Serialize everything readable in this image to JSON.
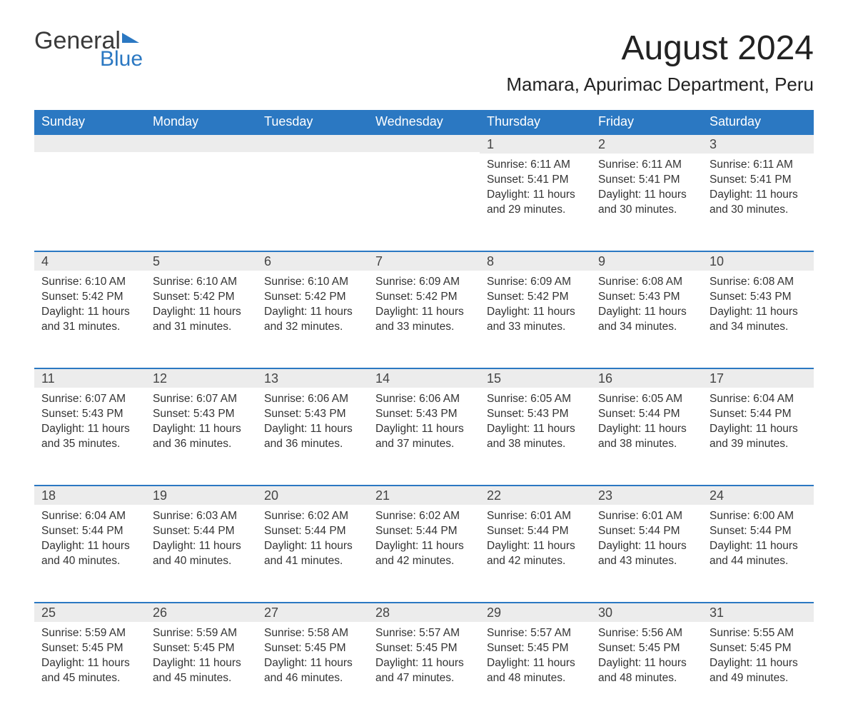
{
  "brand": {
    "top": "General",
    "bottom": "Blue"
  },
  "title": "August 2024",
  "location": "Mamara, Apurimac Department, Peru",
  "weekdays": [
    "Sunday",
    "Monday",
    "Tuesday",
    "Wednesday",
    "Thursday",
    "Friday",
    "Saturday"
  ],
  "style": {
    "accent_color": "#2b78c2",
    "header_bg": "#2b78c2",
    "header_text": "#ffffff",
    "daynum_bg": "#ececec",
    "daynum_border": "#2b78c2",
    "body_text": "#333333",
    "page_bg": "#ffffff",
    "month_fontsize": 48,
    "location_fontsize": 26,
    "header_fontsize": 18,
    "daynum_fontsize": 18,
    "cell_fontsize": 15.5
  },
  "calendar": {
    "type": "table",
    "columns": 7,
    "rows": 5,
    "first_weekday_index": 4,
    "days": [
      {
        "n": 1,
        "sunrise": "6:11 AM",
        "sunset": "5:41 PM",
        "daylight": "11 hours and 29 minutes."
      },
      {
        "n": 2,
        "sunrise": "6:11 AM",
        "sunset": "5:41 PM",
        "daylight": "11 hours and 30 minutes."
      },
      {
        "n": 3,
        "sunrise": "6:11 AM",
        "sunset": "5:41 PM",
        "daylight": "11 hours and 30 minutes."
      },
      {
        "n": 4,
        "sunrise": "6:10 AM",
        "sunset": "5:42 PM",
        "daylight": "11 hours and 31 minutes."
      },
      {
        "n": 5,
        "sunrise": "6:10 AM",
        "sunset": "5:42 PM",
        "daylight": "11 hours and 31 minutes."
      },
      {
        "n": 6,
        "sunrise": "6:10 AM",
        "sunset": "5:42 PM",
        "daylight": "11 hours and 32 minutes."
      },
      {
        "n": 7,
        "sunrise": "6:09 AM",
        "sunset": "5:42 PM",
        "daylight": "11 hours and 33 minutes."
      },
      {
        "n": 8,
        "sunrise": "6:09 AM",
        "sunset": "5:42 PM",
        "daylight": "11 hours and 33 minutes."
      },
      {
        "n": 9,
        "sunrise": "6:08 AM",
        "sunset": "5:43 PM",
        "daylight": "11 hours and 34 minutes."
      },
      {
        "n": 10,
        "sunrise": "6:08 AM",
        "sunset": "5:43 PM",
        "daylight": "11 hours and 34 minutes."
      },
      {
        "n": 11,
        "sunrise": "6:07 AM",
        "sunset": "5:43 PM",
        "daylight": "11 hours and 35 minutes."
      },
      {
        "n": 12,
        "sunrise": "6:07 AM",
        "sunset": "5:43 PM",
        "daylight": "11 hours and 36 minutes."
      },
      {
        "n": 13,
        "sunrise": "6:06 AM",
        "sunset": "5:43 PM",
        "daylight": "11 hours and 36 minutes."
      },
      {
        "n": 14,
        "sunrise": "6:06 AM",
        "sunset": "5:43 PM",
        "daylight": "11 hours and 37 minutes."
      },
      {
        "n": 15,
        "sunrise": "6:05 AM",
        "sunset": "5:43 PM",
        "daylight": "11 hours and 38 minutes."
      },
      {
        "n": 16,
        "sunrise": "6:05 AM",
        "sunset": "5:44 PM",
        "daylight": "11 hours and 38 minutes."
      },
      {
        "n": 17,
        "sunrise": "6:04 AM",
        "sunset": "5:44 PM",
        "daylight": "11 hours and 39 minutes."
      },
      {
        "n": 18,
        "sunrise": "6:04 AM",
        "sunset": "5:44 PM",
        "daylight": "11 hours and 40 minutes."
      },
      {
        "n": 19,
        "sunrise": "6:03 AM",
        "sunset": "5:44 PM",
        "daylight": "11 hours and 40 minutes."
      },
      {
        "n": 20,
        "sunrise": "6:02 AM",
        "sunset": "5:44 PM",
        "daylight": "11 hours and 41 minutes."
      },
      {
        "n": 21,
        "sunrise": "6:02 AM",
        "sunset": "5:44 PM",
        "daylight": "11 hours and 42 minutes."
      },
      {
        "n": 22,
        "sunrise": "6:01 AM",
        "sunset": "5:44 PM",
        "daylight": "11 hours and 42 minutes."
      },
      {
        "n": 23,
        "sunrise": "6:01 AM",
        "sunset": "5:44 PM",
        "daylight": "11 hours and 43 minutes."
      },
      {
        "n": 24,
        "sunrise": "6:00 AM",
        "sunset": "5:44 PM",
        "daylight": "11 hours and 44 minutes."
      },
      {
        "n": 25,
        "sunrise": "5:59 AM",
        "sunset": "5:45 PM",
        "daylight": "11 hours and 45 minutes."
      },
      {
        "n": 26,
        "sunrise": "5:59 AM",
        "sunset": "5:45 PM",
        "daylight": "11 hours and 45 minutes."
      },
      {
        "n": 27,
        "sunrise": "5:58 AM",
        "sunset": "5:45 PM",
        "daylight": "11 hours and 46 minutes."
      },
      {
        "n": 28,
        "sunrise": "5:57 AM",
        "sunset": "5:45 PM",
        "daylight": "11 hours and 47 minutes."
      },
      {
        "n": 29,
        "sunrise": "5:57 AM",
        "sunset": "5:45 PM",
        "daylight": "11 hours and 48 minutes."
      },
      {
        "n": 30,
        "sunrise": "5:56 AM",
        "sunset": "5:45 PM",
        "daylight": "11 hours and 48 minutes."
      },
      {
        "n": 31,
        "sunrise": "5:55 AM",
        "sunset": "5:45 PM",
        "daylight": "11 hours and 49 minutes."
      }
    ]
  },
  "labels": {
    "sunrise": "Sunrise:",
    "sunset": "Sunset:",
    "daylight": "Daylight:"
  }
}
